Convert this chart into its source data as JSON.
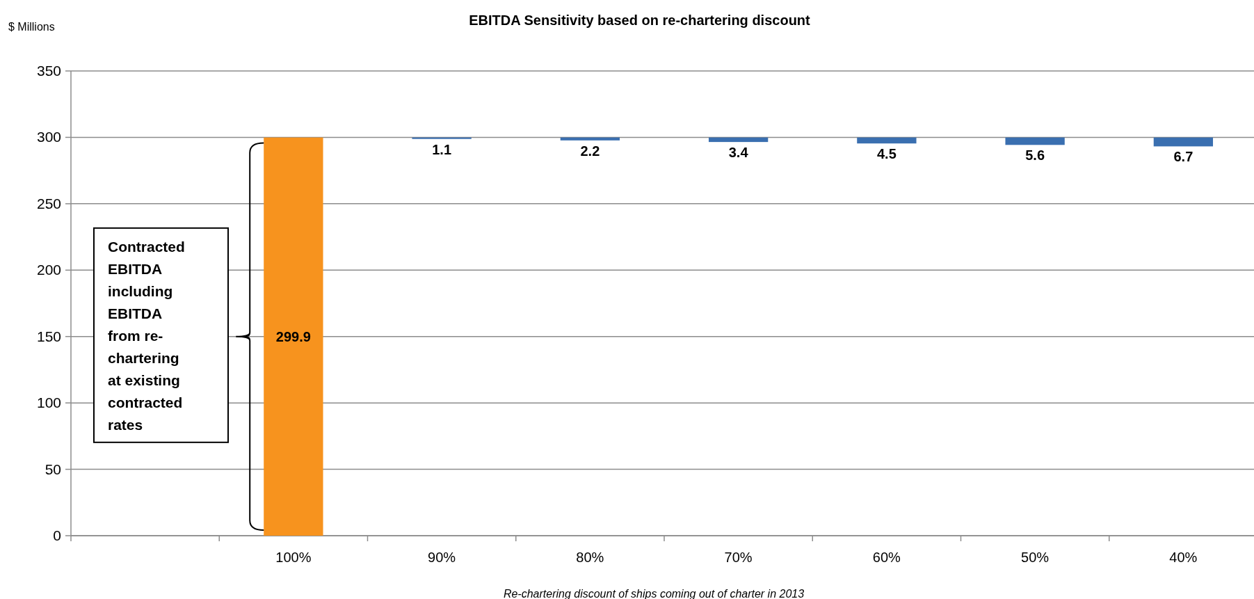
{
  "chart_data": {
    "type": "bar",
    "title": "EBITDA Sensitivity based on re-chartering discount",
    "ylabel": "$ Millions",
    "xlabel": "Re-chartering discount of ships coming out of charter in 2013",
    "categories": [
      null,
      "100%",
      "90%",
      "80%",
      "70%",
      "60%",
      "50%",
      "40%"
    ],
    "values": [
      null,
      299.9,
      -1.1,
      -2.2,
      -3.4,
      -4.5,
      -5.6,
      -6.7
    ],
    "base": [
      null,
      0,
      299.9,
      299.9,
      299.9,
      299.9,
      299.9,
      299.9
    ],
    "colors": [
      null,
      "#f7931e",
      "#3a6fb0",
      "#3a6fb0",
      "#3a6fb0",
      "#3a6fb0",
      "#3a6fb0",
      "#3a6fb0"
    ],
    "value_labels": [
      null,
      "299.9",
      "1.1",
      "2.2",
      "3.4",
      "4.5",
      "5.6",
      "6.7"
    ],
    "ylim": [
      0,
      350
    ],
    "yticks": [
      0,
      50,
      100,
      150,
      200,
      250,
      300,
      350
    ],
    "grid": "y",
    "annotations": [
      "Contracted EBITDA including EBITDA from re-chartering at existing contracted rates"
    ]
  }
}
